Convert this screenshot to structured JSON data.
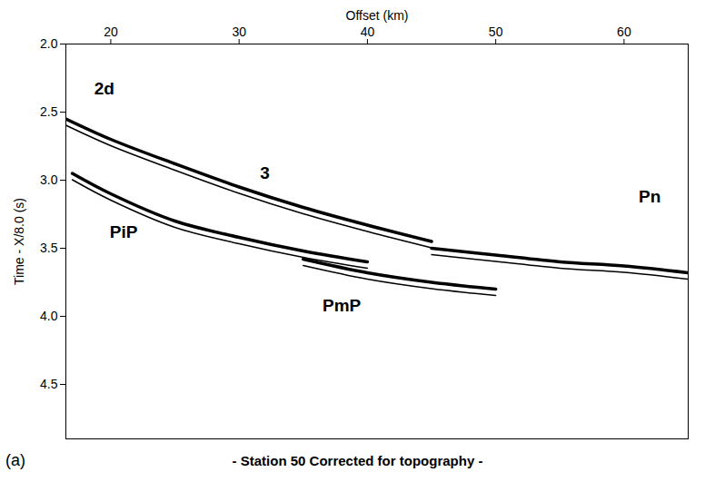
{
  "chart_data": {
    "type": "line",
    "title": "- Station 50 Corrected for topography -",
    "panel": "(a)",
    "x_label": "Offset (km)",
    "y_label": "Time - X/8.0 (s)",
    "xlim": [
      16.5,
      65
    ],
    "xticks": [
      20,
      30,
      40,
      50,
      60
    ],
    "ylim": [
      2.0,
      4.9
    ],
    "yticks": [
      {
        "value": 2.0,
        "label": "2.0"
      },
      2.5,
      {
        "value": 3.0,
        "label": "3.0"
      },
      3.5,
      {
        "value": 4.0,
        "label": "4.0"
      },
      4.5
    ],
    "grid": false,
    "series": [
      {
        "name": "3",
        "color": "#000000",
        "label_at": [
          32,
          2.95
        ],
        "x": [
          16.5,
          20,
          25,
          30,
          35,
          40,
          45
        ],
        "values": [
          2.55,
          2.7,
          2.88,
          3.05,
          3.2,
          3.33,
          3.45
        ]
      },
      {
        "name": "Pn",
        "color": "#000000",
        "label_at": [
          62,
          3.12
        ],
        "x": [
          45,
          50,
          55,
          60,
          65
        ],
        "values": [
          3.5,
          3.55,
          3.6,
          3.63,
          3.68
        ]
      },
      {
        "name": "PiP",
        "color": "#000000",
        "label_at": [
          21,
          3.38
        ],
        "x": [
          17,
          20,
          25,
          30,
          35,
          40
        ],
        "values": [
          2.95,
          3.1,
          3.3,
          3.42,
          3.52,
          3.6
        ]
      },
      {
        "name": "PmP",
        "color": "#000000",
        "label_at": [
          38,
          3.92
        ],
        "x": [
          35,
          40,
          45,
          50
        ],
        "values": [
          3.58,
          3.68,
          3.75,
          3.8
        ]
      }
    ],
    "annotations": [
      {
        "text": "2d",
        "x": 19.5,
        "y": 2.33
      }
    ]
  }
}
